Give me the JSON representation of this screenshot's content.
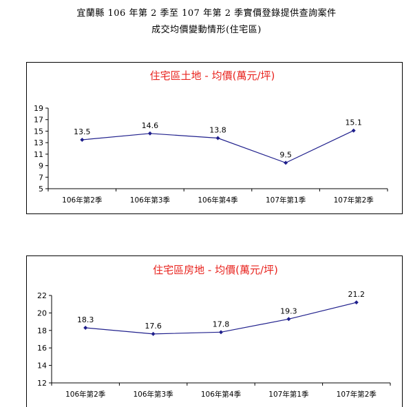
{
  "header": {
    "line1": "宜蘭縣 106 年第 2 季至 107 年第 2 季實價登錄提供查詢案件",
    "line2": "成交均價變動情形(住宅區)"
  },
  "style": {
    "line_color": "#1f1f8c",
    "title_color": "#e8231e",
    "axis_color": "#000000"
  },
  "chart_data": [
    {
      "type": "line",
      "title": "住宅區土地 - 均價(萬元/坪)",
      "categories": [
        "106年第2季",
        "106年第3季",
        "106年第4季",
        "107年第1季",
        "107年第2季"
      ],
      "values": [
        13.5,
        14.6,
        13.8,
        9.5,
        15.1
      ],
      "value_labels": [
        "13.5",
        "14.6",
        "13.8",
        "9.5",
        "15.1"
      ],
      "yticks": [
        5,
        7,
        9,
        11,
        13,
        15,
        17,
        19
      ],
      "ylim": [
        5,
        19
      ],
      "grid": false,
      "legend": "none"
    },
    {
      "type": "line",
      "title": "住宅區房地 - 均價(萬元/坪)",
      "categories": [
        "106年第2季",
        "106年第3季",
        "106年第4季",
        "107年第1季",
        "107年第2季"
      ],
      "values": [
        18.3,
        17.6,
        17.8,
        19.3,
        21.2
      ],
      "value_labels": [
        "18.3",
        "17.6",
        "17.8",
        "19.3",
        "21.2"
      ],
      "yticks": [
        12,
        14,
        16,
        18,
        20,
        22
      ],
      "ylim": [
        12,
        22
      ],
      "grid": false,
      "legend": "none"
    }
  ]
}
